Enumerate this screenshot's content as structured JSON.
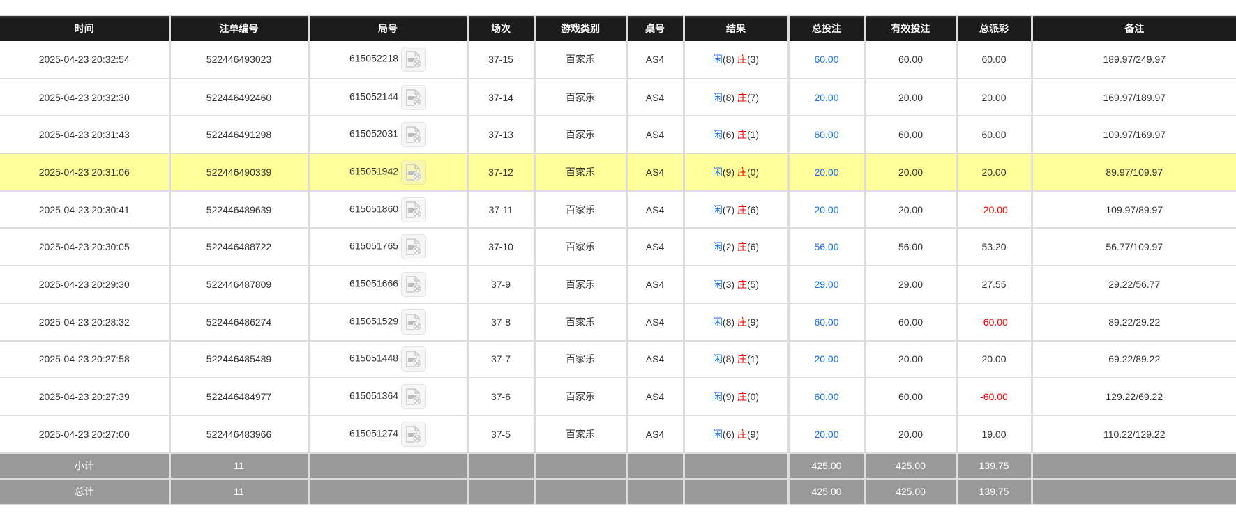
{
  "headers": [
    "时间",
    "注单编号",
    "局号",
    "场次",
    "游戏类别",
    "桌号",
    "结果",
    "总投注",
    "有效投注",
    "总派彩",
    "备注"
  ],
  "colors": {
    "header_bg": "#1b1b1b",
    "highlight": "#ffff99",
    "blue": "#1a6cf0",
    "red": "#ff0000",
    "summary_bg": "#999999"
  },
  "result_labels": {
    "player": "闲",
    "banker": "庄"
  },
  "rows": [
    {
      "time": "2025-04-23 20:32:54",
      "bet_id": "522446493023",
      "round": "615052218",
      "session": "37-15",
      "game": "百家乐",
      "table": "AS4",
      "player": "(8)",
      "banker": "(3)",
      "total_bet": "60.00",
      "valid_bet": "60.00",
      "payout": "60.00",
      "payout_negative": false,
      "note": "189.97/249.97",
      "highlighted": false
    },
    {
      "time": "2025-04-23 20:32:30",
      "bet_id": "522446492460",
      "round": "615052144",
      "session": "37-14",
      "game": "百家乐",
      "table": "AS4",
      "player": "(8)",
      "banker": "(7)",
      "total_bet": "20.00",
      "valid_bet": "20.00",
      "payout": "20.00",
      "payout_negative": false,
      "note": "169.97/189.97",
      "highlighted": false
    },
    {
      "time": "2025-04-23 20:31:43",
      "bet_id": "522446491298",
      "round": "615052031",
      "session": "37-13",
      "game": "百家乐",
      "table": "AS4",
      "player": "(6)",
      "banker": "(1)",
      "total_bet": "60.00",
      "valid_bet": "60.00",
      "payout": "60.00",
      "payout_negative": false,
      "note": "109.97/169.97",
      "highlighted": false
    },
    {
      "time": "2025-04-23 20:31:06",
      "bet_id": "522446490339",
      "round": "615051942",
      "session": "37-12",
      "game": "百家乐",
      "table": "AS4",
      "player": "(9)",
      "banker": "(0)",
      "total_bet": "20.00",
      "valid_bet": "20.00",
      "payout": "20.00",
      "payout_negative": false,
      "note": "89.97/109.97",
      "highlighted": true
    },
    {
      "time": "2025-04-23 20:30:41",
      "bet_id": "522446489639",
      "round": "615051860",
      "session": "37-11",
      "game": "百家乐",
      "table": "AS4",
      "player": "(7)",
      "banker": "(6)",
      "total_bet": "20.00",
      "valid_bet": "20.00",
      "payout": "-20.00",
      "payout_negative": true,
      "note": "109.97/89.97",
      "highlighted": false
    },
    {
      "time": "2025-04-23 20:30:05",
      "bet_id": "522446488722",
      "round": "615051765",
      "session": "37-10",
      "game": "百家乐",
      "table": "AS4",
      "player": "(2)",
      "banker": "(6)",
      "total_bet": "56.00",
      "valid_bet": "56.00",
      "payout": "53.20",
      "payout_negative": false,
      "note": "56.77/109.97",
      "highlighted": false
    },
    {
      "time": "2025-04-23 20:29:30",
      "bet_id": "522446487809",
      "round": "615051666",
      "session": "37-9",
      "game": "百家乐",
      "table": "AS4",
      "player": "(3)",
      "banker": "(5)",
      "total_bet": "29.00",
      "valid_bet": "29.00",
      "payout": "27.55",
      "payout_negative": false,
      "note": "29.22/56.77",
      "highlighted": false
    },
    {
      "time": "2025-04-23 20:28:32",
      "bet_id": "522446486274",
      "round": "615051529",
      "session": "37-8",
      "game": "百家乐",
      "table": "AS4",
      "player": "(8)",
      "banker": "(9)",
      "total_bet": "60.00",
      "valid_bet": "60.00",
      "payout": "-60.00",
      "payout_negative": true,
      "note": "89.22/29.22",
      "highlighted": false
    },
    {
      "time": "2025-04-23 20:27:58",
      "bet_id": "522446485489",
      "round": "615051448",
      "session": "37-7",
      "game": "百家乐",
      "table": "AS4",
      "player": "(8)",
      "banker": "(1)",
      "total_bet": "20.00",
      "valid_bet": "20.00",
      "payout": "20.00",
      "payout_negative": false,
      "note": "69.22/89.22",
      "highlighted": false
    },
    {
      "time": "2025-04-23 20:27:39",
      "bet_id": "522446484977",
      "round": "615051364",
      "session": "37-6",
      "game": "百家乐",
      "table": "AS4",
      "player": "(9)",
      "banker": "(0)",
      "total_bet": "60.00",
      "valid_bet": "60.00",
      "payout": "-60.00",
      "payout_negative": true,
      "note": "129.22/69.22",
      "highlighted": false
    },
    {
      "time": "2025-04-23 20:27:00",
      "bet_id": "522446483966",
      "round": "615051274",
      "session": "37-5",
      "game": "百家乐",
      "table": "AS4",
      "player": "(6)",
      "banker": "(9)",
      "total_bet": "20.00",
      "valid_bet": "20.00",
      "payout": "19.00",
      "payout_negative": false,
      "note": "110.22/129.22",
      "highlighted": false
    }
  ],
  "summary": [
    {
      "label": "小计",
      "count": "11",
      "total_bet": "425.00",
      "valid_bet": "425.00",
      "payout": "139.75"
    },
    {
      "label": "总计",
      "count": "11",
      "total_bet": "425.00",
      "valid_bet": "425.00",
      "payout": "139.75"
    }
  ]
}
